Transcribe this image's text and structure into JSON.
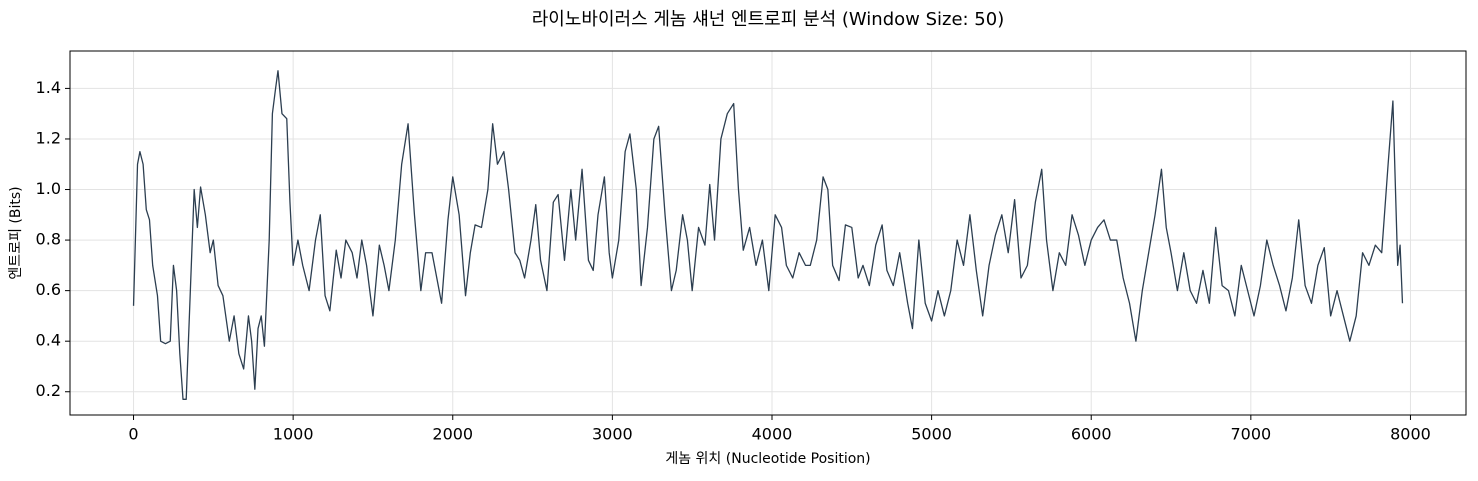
{
  "chart_data": {
    "type": "line",
    "title": "라이노바이러스 게놈 섀넌 엔트로피 분석 (Window Size: 50)",
    "xlabel": "게놈 위치 (Nucleotide Position)",
    "ylabel": "엔트로피 (Bits)",
    "color": "#2c3e50",
    "grid": true,
    "xlim": [
      -398,
      8348
    ],
    "ylim": [
      0.108,
      1.548
    ],
    "xticks": [
      0,
      1000,
      2000,
      3000,
      4000,
      5000,
      6000,
      7000,
      8000
    ],
    "yticks": [
      0.2,
      0.4,
      0.6,
      0.8,
      {
        "value": 1,
        "label": "1.0"
      },
      1.2,
      1.4
    ],
    "x": [
      0,
      25,
      40,
      60,
      80,
      100,
      120,
      150,
      170,
      200,
      230,
      250,
      270,
      290,
      310,
      330,
      350,
      380,
      400,
      420,
      450,
      480,
      500,
      530,
      560,
      600,
      630,
      660,
      690,
      720,
      740,
      760,
      780,
      800,
      820,
      850,
      870,
      890,
      905,
      930,
      960,
      980,
      1000,
      1030,
      1060,
      1100,
      1140,
      1170,
      1200,
      1230,
      1270,
      1300,
      1330,
      1370,
      1400,
      1430,
      1460,
      1500,
      1540,
      1570,
      1600,
      1640,
      1680,
      1720,
      1760,
      1800,
      1830,
      1870,
      1900,
      1930,
      1970,
      2000,
      2040,
      2080,
      2110,
      2140,
      2180,
      2220,
      2250,
      2280,
      2320,
      2350,
      2390,
      2420,
      2450,
      2490,
      2520,
      2550,
      2590,
      2630,
      2660,
      2700,
      2740,
      2770,
      2810,
      2850,
      2880,
      2910,
      2950,
      2980,
      3000,
      3040,
      3080,
      3110,
      3150,
      3180,
      3220,
      3260,
      3290,
      3330,
      3370,
      3400,
      3440,
      3470,
      3500,
      3540,
      3580,
      3610,
      3640,
      3680,
      3720,
      3760,
      3790,
      3820,
      3860,
      3900,
      3940,
      3980,
      4020,
      4060,
      4090,
      4130,
      4170,
      4210,
      4240,
      4280,
      4320,
      4350,
      4380,
      4420,
      4460,
      4500,
      4540,
      4570,
      4610,
      4650,
      4690,
      4720,
      4760,
      4800,
      4850,
      4880,
      4920,
      4960,
      5000,
      5040,
      5080,
      5120,
      5160,
      5200,
      5240,
      5280,
      5320,
      5360,
      5400,
      5440,
      5480,
      5520,
      5560,
      5600,
      5650,
      5690,
      5720,
      5760,
      5800,
      5840,
      5880,
      5920,
      5960,
      6000,
      6040,
      6080,
      6120,
      6160,
      6200,
      6240,
      6280,
      6320,
      6360,
      6400,
      6440,
      6470,
      6500,
      6540,
      6580,
      6620,
      6660,
      6700,
      6740,
      6780,
      6820,
      6860,
      6900,
      6940,
      6980,
      7020,
      7060,
      7100,
      7140,
      7180,
      7220,
      7260,
      7300,
      7340,
      7380,
      7420,
      7460,
      7500,
      7540,
      7580,
      7620,
      7660,
      7700,
      7740,
      7780,
      7820,
      7860,
      7890,
      7920,
      7935,
      7950
    ],
    "values": [
      0.54,
      1.1,
      1.15,
      1.1,
      0.92,
      0.88,
      0.7,
      0.58,
      0.4,
      0.39,
      0.4,
      0.7,
      0.6,
      0.35,
      0.17,
      0.17,
      0.5,
      1.0,
      0.85,
      1.01,
      0.9,
      0.75,
      0.8,
      0.62,
      0.58,
      0.4,
      0.5,
      0.35,
      0.29,
      0.5,
      0.4,
      0.21,
      0.45,
      0.5,
      0.38,
      0.8,
      1.3,
      1.4,
      1.47,
      1.3,
      1.28,
      0.95,
      0.7,
      0.8,
      0.7,
      0.6,
      0.8,
      0.9,
      0.58,
      0.52,
      0.76,
      0.65,
      0.8,
      0.75,
      0.65,
      0.8,
      0.7,
      0.5,
      0.78,
      0.7,
      0.6,
      0.8,
      1.1,
      1.26,
      0.9,
      0.6,
      0.75,
      0.75,
      0.65,
      0.55,
      0.88,
      1.05,
      0.9,
      0.58,
      0.75,
      0.86,
      0.85,
      1.0,
      1.26,
      1.1,
      1.15,
      1.0,
      0.75,
      0.72,
      0.65,
      0.8,
      0.94,
      0.72,
      0.6,
      0.95,
      0.98,
      0.72,
      1.0,
      0.8,
      1.08,
      0.72,
      0.68,
      0.9,
      1.05,
      0.75,
      0.65,
      0.8,
      1.15,
      1.22,
      1.0,
      0.62,
      0.85,
      1.2,
      1.25,
      0.9,
      0.6,
      0.68,
      0.9,
      0.8,
      0.6,
      0.85,
      0.78,
      1.02,
      0.8,
      1.2,
      1.3,
      1.34,
      1.0,
      0.76,
      0.85,
      0.7,
      0.8,
      0.6,
      0.9,
      0.85,
      0.7,
      0.65,
      0.75,
      0.7,
      0.7,
      0.8,
      1.05,
      1.0,
      0.7,
      0.64,
      0.86,
      0.85,
      0.65,
      0.7,
      0.62,
      0.78,
      0.86,
      0.68,
      0.62,
      0.75,
      0.55,
      0.45,
      0.8,
      0.55,
      0.48,
      0.6,
      0.5,
      0.6,
      0.8,
      0.7,
      0.9,
      0.68,
      0.5,
      0.7,
      0.82,
      0.9,
      0.75,
      0.96,
      0.65,
      0.7,
      0.95,
      1.08,
      0.8,
      0.6,
      0.75,
      0.7,
      0.9,
      0.82,
      0.7,
      0.8,
      0.85,
      0.88,
      0.8,
      0.8,
      0.65,
      0.55,
      0.4,
      0.6,
      0.75,
      0.9,
      1.08,
      0.85,
      0.75,
      0.6,
      0.75,
      0.6,
      0.55,
      0.68,
      0.55,
      0.85,
      0.62,
      0.6,
      0.5,
      0.7,
      0.6,
      0.5,
      0.62,
      0.8,
      0.7,
      0.62,
      0.52,
      0.65,
      0.88,
      0.62,
      0.55,
      0.7,
      0.77,
      0.5,
      0.6,
      0.5,
      0.4,
      0.5,
      0.75,
      0.7,
      0.78,
      0.75,
      1.1,
      1.35,
      0.7,
      0.78,
      0.55
    ]
  }
}
